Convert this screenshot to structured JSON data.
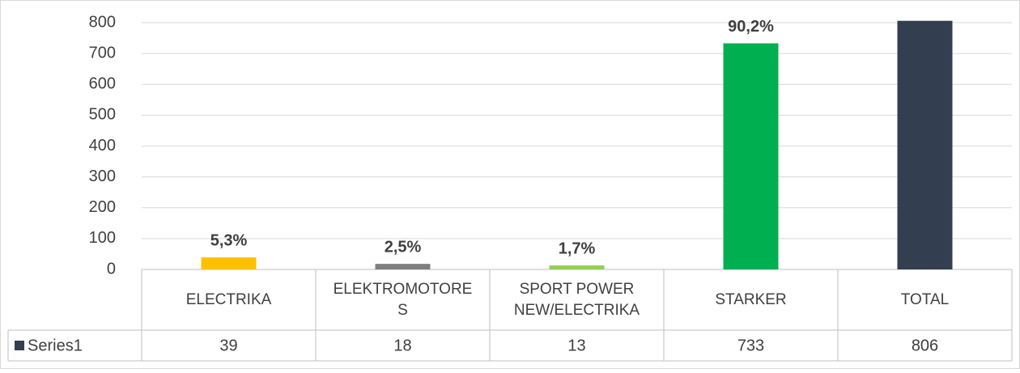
{
  "chart_data": {
    "type": "bar",
    "categories": [
      "ELECTRIKA",
      "ELEKTROMOTORES",
      "SPORT POWER NEW/ELECTRIKA",
      "STARKER",
      "TOTAL"
    ],
    "series": [
      {
        "name": "Series1",
        "color": "#333f50",
        "values": [
          39,
          18,
          13,
          733,
          806
        ]
      }
    ],
    "colors": [
      "#ffc000",
      "#7f7f7f",
      "#92d050",
      "#00b050",
      "#333f50"
    ],
    "percent_labels": [
      "5,3%",
      "2,5%",
      "1,7%",
      "90,2%",
      null
    ],
    "ylim": [
      0,
      800
    ],
    "yticks": [
      0,
      100,
      200,
      300,
      400,
      500,
      600,
      700,
      800
    ],
    "grid": true,
    "data_table": true
  }
}
